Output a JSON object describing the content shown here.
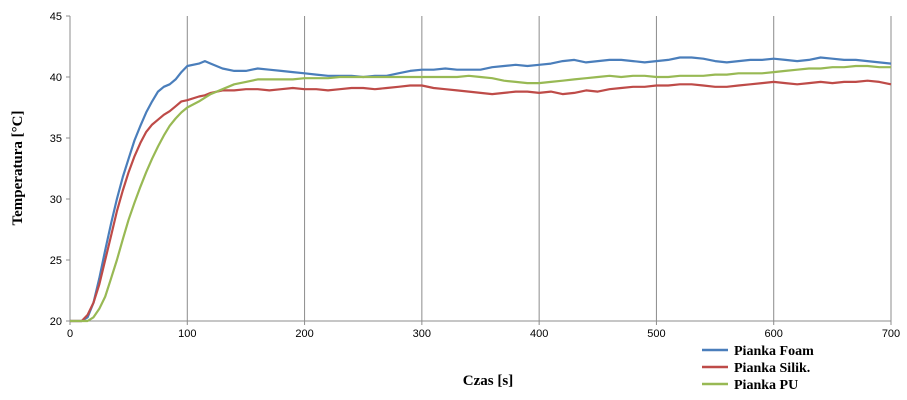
{
  "chart_data": {
    "type": "line",
    "xlabel": "Czas [s]",
    "ylabel": "Temperatura [°C]",
    "xlim": [
      0,
      700
    ],
    "ylim": [
      20,
      45
    ],
    "xticks": [
      0,
      100,
      200,
      300,
      400,
      500,
      600,
      700
    ],
    "yticks": [
      20,
      25,
      30,
      35,
      40,
      45
    ],
    "grid": "vertical",
    "legend_position": "bottom-right",
    "series": [
      {
        "name": "Pianka Foam",
        "color": "#4A7EBB",
        "x": [
          0,
          10,
          15,
          20,
          25,
          30,
          35,
          40,
          45,
          50,
          55,
          60,
          65,
          70,
          75,
          80,
          85,
          90,
          95,
          100,
          110,
          115,
          120,
          130,
          140,
          150,
          160,
          170,
          180,
          190,
          200,
          210,
          220,
          230,
          240,
          250,
          260,
          270,
          280,
          290,
          300,
          310,
          320,
          330,
          340,
          350,
          360,
          370,
          380,
          390,
          400,
          410,
          420,
          430,
          440,
          450,
          460,
          470,
          480,
          490,
          500,
          510,
          520,
          530,
          540,
          550,
          560,
          570,
          580,
          590,
          600,
          610,
          620,
          630,
          640,
          650,
          660,
          670,
          680,
          690,
          700
        ],
        "values": [
          20,
          20,
          20.3,
          21.5,
          23.5,
          25.8,
          28,
          30,
          31.8,
          33.3,
          34.8,
          36,
          37.1,
          38,
          38.8,
          39.2,
          39.4,
          39.8,
          40.4,
          40.9,
          41.1,
          41.3,
          41.1,
          40.7,
          40.5,
          40.5,
          40.7,
          40.6,
          40.5,
          40.4,
          40.3,
          40.2,
          40.1,
          40.1,
          40.1,
          40.0,
          40.1,
          40.1,
          40.3,
          40.5,
          40.6,
          40.6,
          40.7,
          40.6,
          40.6,
          40.6,
          40.8,
          40.9,
          41.0,
          40.9,
          41.0,
          41.1,
          41.3,
          41.4,
          41.2,
          41.3,
          41.4,
          41.4,
          41.3,
          41.2,
          41.3,
          41.4,
          41.6,
          41.6,
          41.5,
          41.3,
          41.2,
          41.3,
          41.4,
          41.4,
          41.5,
          41.4,
          41.3,
          41.4,
          41.6,
          41.5,
          41.4,
          41.4,
          41.3,
          41.2,
          41.1
        ]
      },
      {
        "name": "Pianka Silik.",
        "color": "#BE4B48",
        "x": [
          0,
          10,
          15,
          20,
          25,
          30,
          35,
          40,
          45,
          50,
          55,
          60,
          65,
          70,
          75,
          80,
          85,
          90,
          95,
          100,
          110,
          115,
          120,
          130,
          140,
          150,
          160,
          170,
          180,
          190,
          200,
          210,
          220,
          230,
          240,
          250,
          260,
          270,
          280,
          290,
          300,
          310,
          320,
          330,
          340,
          350,
          360,
          370,
          380,
          390,
          400,
          410,
          420,
          430,
          440,
          450,
          460,
          470,
          480,
          490,
          500,
          510,
          520,
          530,
          540,
          550,
          560,
          570,
          580,
          590,
          600,
          610,
          620,
          630,
          640,
          650,
          660,
          670,
          680,
          690,
          700
        ],
        "values": [
          20,
          20,
          20.5,
          21.5,
          23,
          25,
          27,
          29,
          30.7,
          32.2,
          33.5,
          34.6,
          35.5,
          36.1,
          36.5,
          36.9,
          37.2,
          37.6,
          38.0,
          38.1,
          38.4,
          38.5,
          38.7,
          38.9,
          38.9,
          39.0,
          39.0,
          38.9,
          39.0,
          39.1,
          39.0,
          39.0,
          38.9,
          39.0,
          39.1,
          39.1,
          39.0,
          39.1,
          39.2,
          39.3,
          39.3,
          39.1,
          39.0,
          38.9,
          38.8,
          38.7,
          38.6,
          38.7,
          38.8,
          38.8,
          38.7,
          38.8,
          38.6,
          38.7,
          38.9,
          38.8,
          39.0,
          39.1,
          39.2,
          39.2,
          39.3,
          39.3,
          39.4,
          39.4,
          39.3,
          39.2,
          39.2,
          39.3,
          39.4,
          39.5,
          39.6,
          39.5,
          39.4,
          39.5,
          39.6,
          39.5,
          39.6,
          39.6,
          39.7,
          39.6,
          39.4
        ]
      },
      {
        "name": "Pianka PU",
        "color": "#98B954",
        "x": [
          0,
          10,
          15,
          20,
          25,
          30,
          35,
          40,
          45,
          50,
          55,
          60,
          65,
          70,
          75,
          80,
          85,
          90,
          95,
          100,
          110,
          115,
          120,
          130,
          140,
          150,
          160,
          170,
          180,
          190,
          200,
          210,
          220,
          230,
          240,
          250,
          260,
          270,
          280,
          290,
          300,
          310,
          320,
          330,
          340,
          350,
          360,
          370,
          380,
          390,
          400,
          410,
          420,
          430,
          440,
          450,
          460,
          470,
          480,
          490,
          500,
          510,
          520,
          530,
          540,
          550,
          560,
          570,
          580,
          590,
          600,
          610,
          620,
          630,
          640,
          650,
          660,
          670,
          680,
          690,
          700
        ],
        "values": [
          20,
          20,
          20,
          20.3,
          21,
          22,
          23.5,
          25,
          26.7,
          28.3,
          29.7,
          31,
          32.2,
          33.3,
          34.3,
          35.2,
          36,
          36.6,
          37.1,
          37.5,
          38.0,
          38.3,
          38.6,
          39.0,
          39.4,
          39.6,
          39.8,
          39.8,
          39.8,
          39.8,
          39.9,
          39.9,
          39.9,
          40.0,
          40.0,
          40.0,
          40.0,
          40.0,
          40.0,
          40.0,
          40.0,
          40.0,
          40.0,
          40.0,
          40.1,
          40.0,
          39.9,
          39.7,
          39.6,
          39.5,
          39.5,
          39.6,
          39.7,
          39.8,
          39.9,
          40.0,
          40.1,
          40.0,
          40.1,
          40.1,
          40.0,
          40.0,
          40.1,
          40.1,
          40.1,
          40.2,
          40.2,
          40.3,
          40.3,
          40.3,
          40.4,
          40.5,
          40.6,
          40.7,
          40.7,
          40.8,
          40.8,
          40.9,
          40.9,
          40.8,
          40.8
        ]
      }
    ]
  }
}
